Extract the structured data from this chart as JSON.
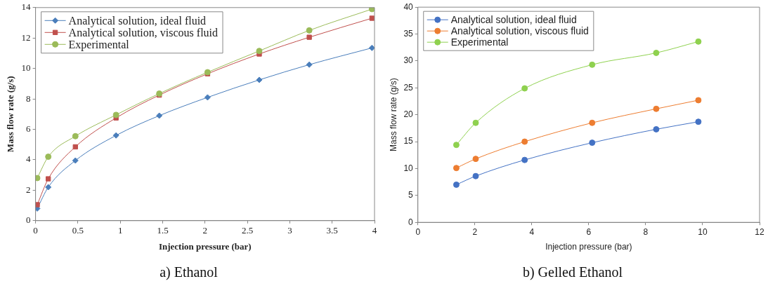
{
  "chart_data": [
    {
      "type": "line",
      "title": "a) Ethanol",
      "xlabel": "Injection pressure (bar)",
      "ylabel": "Mass flow rate (g/s)",
      "x": [
        0.02,
        0.15,
        0.47,
        0.95,
        1.46,
        2.03,
        2.64,
        3.23,
        3.97
      ],
      "series": [
        {
          "name": "Analytical solution, ideal fluid",
          "color": "#4a7ebb",
          "marker": "diamond",
          "values": [
            0.8,
            2.2,
            3.95,
            5.6,
            6.9,
            8.1,
            9.25,
            10.25,
            11.35
          ]
        },
        {
          "name": "Analytical solution, viscous fluid",
          "color": "#c0504d",
          "marker": "square",
          "values": [
            1.05,
            2.75,
            4.85,
            6.75,
            8.25,
            9.65,
            10.95,
            12.05,
            13.3
          ]
        },
        {
          "name": "Experimental",
          "color": "#9bbb59",
          "marker": "circle",
          "values": [
            2.8,
            4.2,
            5.55,
            6.95,
            8.35,
            9.75,
            11.15,
            12.5,
            13.9
          ]
        }
      ],
      "xlim": [
        0,
        4
      ],
      "xticks": [
        0,
        0.5,
        1,
        1.5,
        2,
        2.5,
        3,
        3.5,
        4
      ],
      "ylim": [
        0,
        14
      ],
      "yticks": [
        0,
        2,
        4,
        6,
        8,
        10,
        12,
        14
      ],
      "grid": false,
      "legend": "top left"
    },
    {
      "type": "line",
      "title": "b) Gelled Ethanol",
      "xlabel": "Injection pressure (bar)",
      "ylabel": "Mass flow rate (g/s)",
      "x": [
        1.35,
        2.03,
        3.75,
        6.12,
        8.37,
        9.85
      ],
      "series": [
        {
          "name": "Analytical solution, ideal fluid",
          "color": "#4472c4",
          "values": [
            7.0,
            8.6,
            11.6,
            14.8,
            17.3,
            18.7
          ]
        },
        {
          "name": "Analytical solution, viscous fluid",
          "color": "#ed7d31",
          "values": [
            10.1,
            11.8,
            15.0,
            18.5,
            21.1,
            22.7
          ]
        },
        {
          "name": "Experimental",
          "color": "#8fd14f",
          "values": [
            14.4,
            18.5,
            24.9,
            29.3,
            31.5,
            33.6
          ]
        }
      ],
      "xlim": [
        0,
        12
      ],
      "xticks": [
        0,
        2,
        4,
        6,
        8,
        10,
        12
      ],
      "ylim": [
        0,
        40
      ],
      "yticks": [
        0,
        5,
        10,
        15,
        20,
        25,
        30,
        35,
        40
      ],
      "grid": false,
      "legend": "top left",
      "marker": "circle"
    }
  ]
}
